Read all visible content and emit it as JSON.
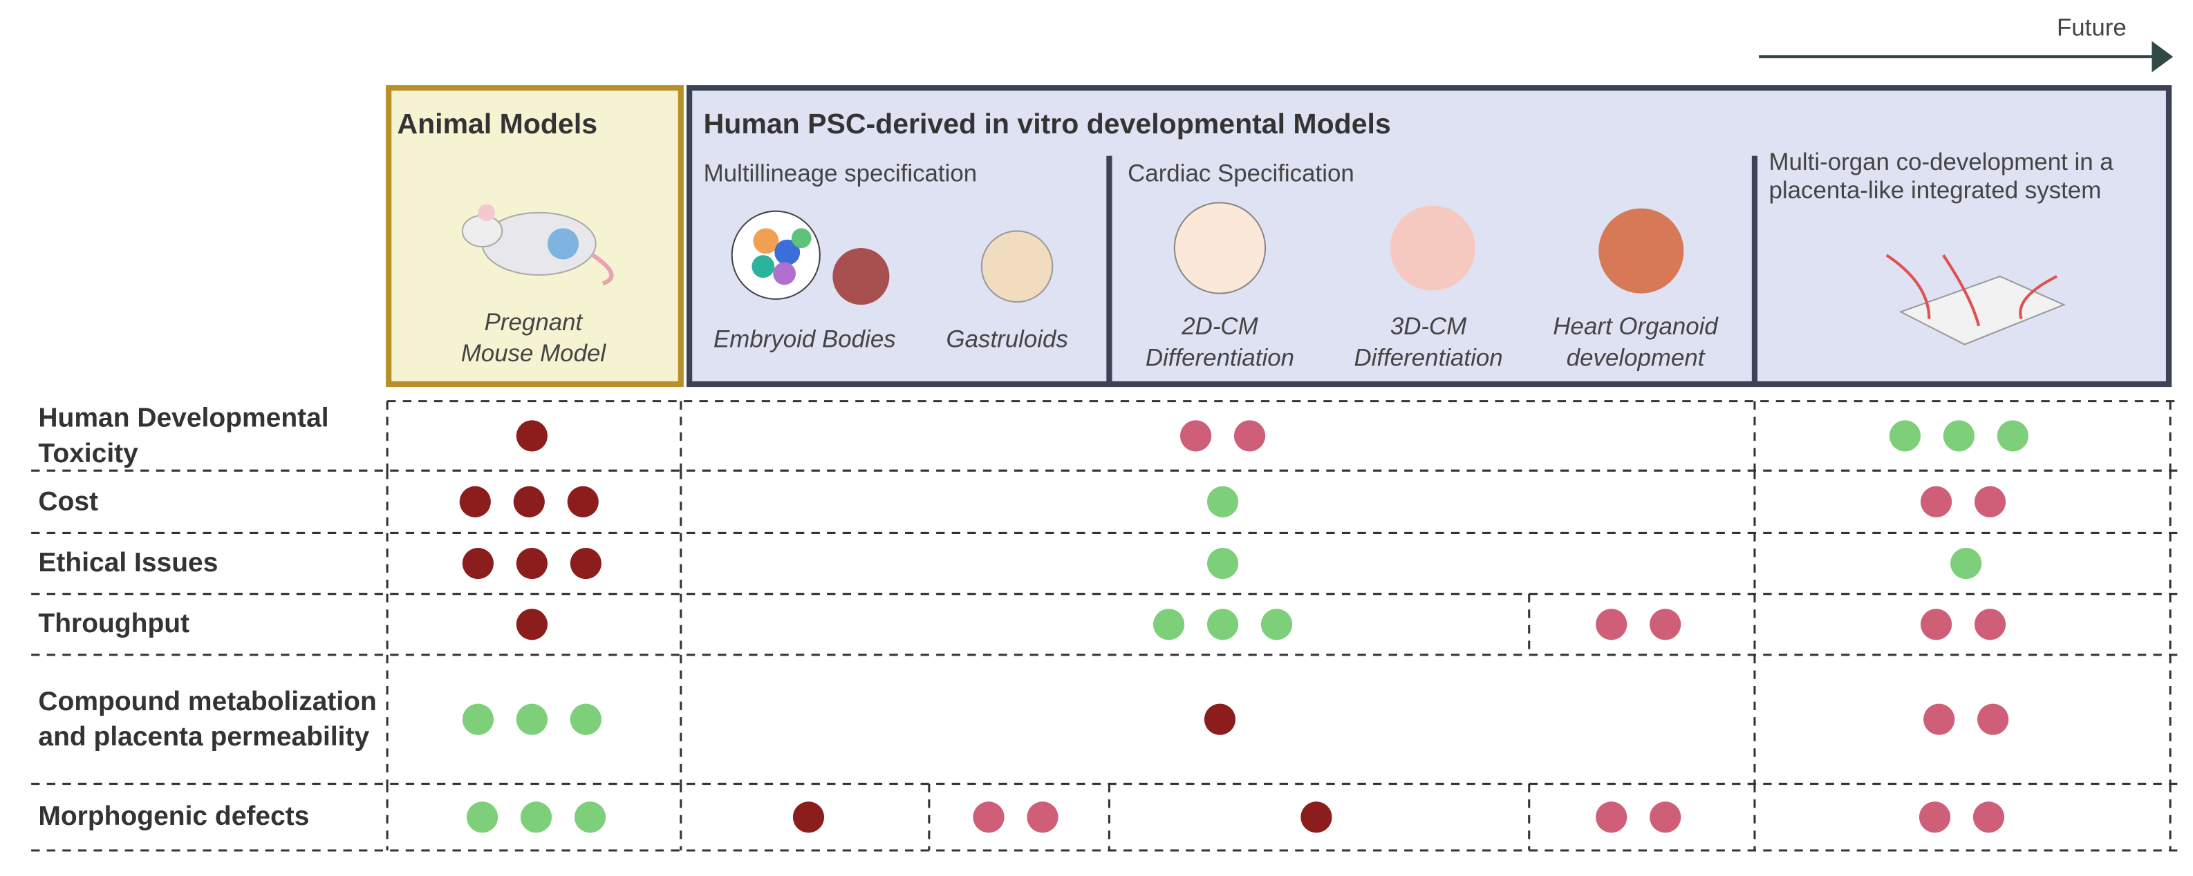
{
  "future": "Future",
  "animal": {
    "title": "Animal Models",
    "model": "Pregnant Mouse Model"
  },
  "human": {
    "title": "Human PSC-derived in vitro developmental Models",
    "multilineage": {
      "title": "Multillineage specification",
      "models": [
        "Embryoid Bodies",
        "Gastruloids"
      ]
    },
    "cardiac": {
      "title": "Cardiac Specification",
      "models": [
        "2D-CM Differentiation",
        "3D-CM Differentiation",
        "Heart Organoid development"
      ]
    },
    "multiorgan": {
      "title": "Multi-organ co-development in a  placenta-like integrated system"
    }
  },
  "rows": [
    {
      "label": "Human Developmental Toxicity",
      "cells": [
        {
          "dots": 1,
          "color": "#8b1d1d"
        },
        {
          "dots": 2,
          "color": "#cf5f78"
        },
        {
          "dots": 3,
          "color": "#7dcf7a"
        }
      ]
    },
    {
      "label": "Cost",
      "cells": [
        {
          "dots": 3,
          "color": "#8b1d1d"
        },
        {
          "dots": 1,
          "color": "#7dcf7a"
        },
        {
          "dots": 2,
          "color": "#cf5f78"
        }
      ]
    },
    {
      "label": "Ethical Issues",
      "cells": [
        {
          "dots": 3,
          "color": "#8b1d1d"
        },
        {
          "dots": 1,
          "color": "#7dcf7a"
        },
        {
          "dots": 1,
          "color": "#7dcf7a"
        }
      ]
    },
    {
      "label": "Throughput",
      "cells": [
        {
          "dots": 1,
          "color": "#8b1d1d"
        },
        {
          "dots": 3,
          "color": "#7dcf7a"
        },
        {
          "dots": 2,
          "color": "#cf5f78"
        },
        {
          "dots": 2,
          "color": "#cf5f78"
        }
      ]
    },
    {
      "label": "Compound metabolization and placenta permeability",
      "cells": [
        {
          "dots": 3,
          "color": "#7dcf7a"
        },
        {
          "dots": 1,
          "color": "#8b1d1d"
        },
        {
          "dots": 2,
          "color": "#cf5f78"
        }
      ]
    },
    {
      "label": "Morphogenic defects",
      "cells": [
        {
          "dots": 3,
          "color": "#7dcf7a"
        },
        {
          "dots": 1,
          "color": "#8b1d1d"
        },
        {
          "dots": 2,
          "color": "#cf5f78"
        },
        {
          "dots": 1,
          "color": "#8b1d1d"
        },
        {
          "dots": 2,
          "color": "#cf5f78"
        },
        {
          "dots": 2,
          "color": "#cf5f78"
        }
      ]
    }
  ]
}
